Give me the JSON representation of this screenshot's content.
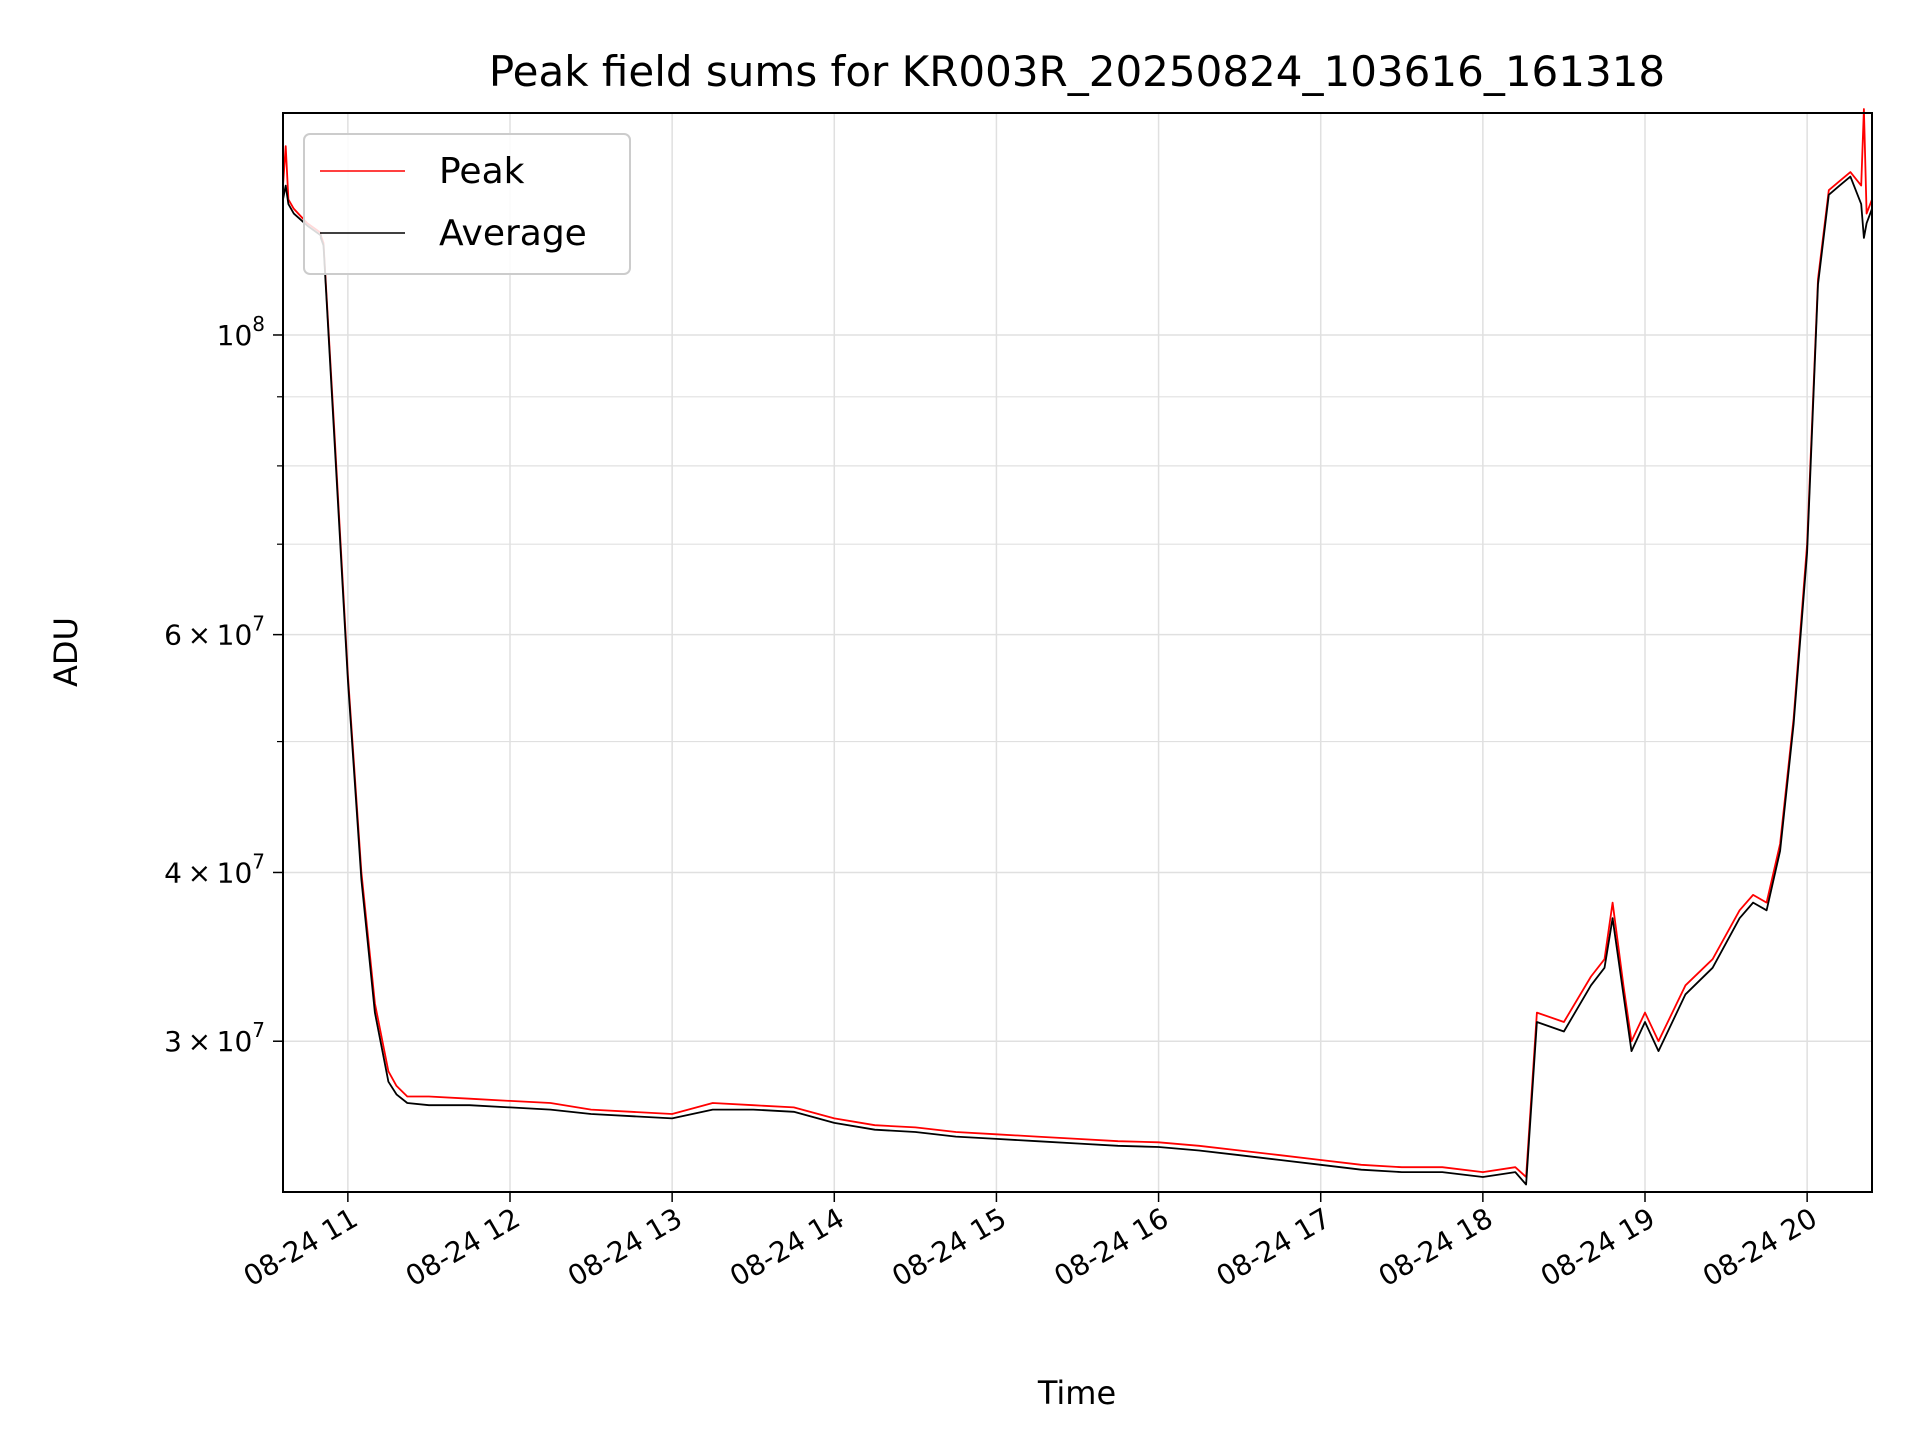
{
  "chart_data": {
    "type": "line",
    "title": "Peak field sums for KR003R_20250824_103616_161318",
    "xlabel": "Time",
    "ylabel": "ADU",
    "y_scale": "log",
    "ylim": [
      23200000,
      146000000
    ],
    "xlim": [
      "2025-08-24 10:36",
      "2025-08-24 20:24"
    ],
    "grid": true,
    "legend_position": "upper left",
    "x_tick_labels": [
      "08-24 11",
      "08-24 12",
      "08-24 13",
      "08-24 14",
      "08-24 15",
      "08-24 16",
      "08-24 17",
      "08-24 18",
      "08-24 19",
      "08-24 20"
    ],
    "x_ticks": [
      "2025-08-24 11:00",
      "2025-08-24 12:00",
      "2025-08-24 13:00",
      "2025-08-24 14:00",
      "2025-08-24 15:00",
      "2025-08-24 16:00",
      "2025-08-24 17:00",
      "2025-08-24 18:00",
      "2025-08-24 19:00",
      "2025-08-24 20:00"
    ],
    "y_major_ticks": [
      {
        "value": 30000000,
        "mantissa": "3",
        "exponent": "7"
      },
      {
        "value": 40000000,
        "mantissa": "4",
        "exponent": "7"
      },
      {
        "value": 60000000,
        "mantissa": "6",
        "exponent": "7"
      },
      {
        "value": 100000000,
        "mantissa": "",
        "exponent": "8"
      }
    ],
    "y_minor_ticks": [
      50000000,
      70000000,
      80000000,
      90000000
    ],
    "series": [
      {
        "name": "Peak",
        "color": "#ff0000",
        "x": [
          "2025-08-24 10:36",
          "2025-08-24 10:37",
          "2025-08-24 10:38",
          "2025-08-24 10:40",
          "2025-08-24 10:45",
          "2025-08-24 10:50",
          "2025-08-24 10:50",
          "2025-08-24 10:51",
          "2025-08-24 10:55",
          "2025-08-24 11:00",
          "2025-08-24 11:05",
          "2025-08-24 11:10",
          "2025-08-24 11:15",
          "2025-08-24 11:18",
          "2025-08-24 11:22",
          "2025-08-24 11:30",
          "2025-08-24 11:45",
          "2025-08-24 12:00",
          "2025-08-24 12:15",
          "2025-08-24 12:30",
          "2025-08-24 12:45",
          "2025-08-24 13:00",
          "2025-08-24 13:15",
          "2025-08-24 13:30",
          "2025-08-24 13:45",
          "2025-08-24 14:00",
          "2025-08-24 14:15",
          "2025-08-24 14:30",
          "2025-08-24 14:45",
          "2025-08-24 15:00",
          "2025-08-24 15:15",
          "2025-08-24 15:30",
          "2025-08-24 15:45",
          "2025-08-24 16:00",
          "2025-08-24 16:15",
          "2025-08-24 16:30",
          "2025-08-24 16:45",
          "2025-08-24 17:00",
          "2025-08-24 17:15",
          "2025-08-24 17:30",
          "2025-08-24 17:45",
          "2025-08-24 18:00",
          "2025-08-24 18:12",
          "2025-08-24 18:16",
          "2025-08-24 18:20",
          "2025-08-24 18:30",
          "2025-08-24 18:40",
          "2025-08-24 18:45",
          "2025-08-24 18:48",
          "2025-08-24 18:52",
          "2025-08-24 18:55",
          "2025-08-24 19:00",
          "2025-08-24 19:05",
          "2025-08-24 19:15",
          "2025-08-24 19:25",
          "2025-08-24 19:35",
          "2025-08-24 19:40",
          "2025-08-24 19:45",
          "2025-08-24 19:50",
          "2025-08-24 19:55",
          "2025-08-24 20:00",
          "2025-08-24 20:04",
          "2025-08-24 20:08",
          "2025-08-24 20:12",
          "2025-08-24 20:16",
          "2025-08-24 20:20",
          "2025-08-24 20:21",
          "2025-08-24 20:22",
          "2025-08-24 20:24"
        ],
        "y": [
          129000000,
          138000000,
          126000000,
          124000000,
          121000000,
          119000000,
          118500000,
          117000000,
          85000000,
          56000000,
          40000000,
          32000000,
          28500000,
          27800000,
          27300000,
          27300000,
          27200000,
          27100000,
          27000000,
          26700000,
          26600000,
          26500000,
          27000000,
          26900000,
          26800000,
          26300000,
          26000000,
          25900000,
          25700000,
          25600000,
          25500000,
          25400000,
          25300000,
          25250000,
          25100000,
          24900000,
          24700000,
          24500000,
          24300000,
          24200000,
          24200000,
          24000000,
          24200000,
          23800000,
          31500000,
          31000000,
          33500000,
          34500000,
          38000000,
          33000000,
          30000000,
          31500000,
          30000000,
          33000000,
          34500000,
          37500000,
          38500000,
          38000000,
          42000000,
          52000000,
          70000000,
          110000000,
          128000000,
          130000000,
          132000000,
          129000000,
          147000000,
          123000000,
          126000000
        ]
      },
      {
        "name": "Average",
        "color": "#000000",
        "x": [
          "2025-08-24 10:36",
          "2025-08-24 10:37",
          "2025-08-24 10:38",
          "2025-08-24 10:40",
          "2025-08-24 10:45",
          "2025-08-24 10:50",
          "2025-08-24 10:50",
          "2025-08-24 10:51",
          "2025-08-24 10:55",
          "2025-08-24 11:00",
          "2025-08-24 11:05",
          "2025-08-24 11:10",
          "2025-08-24 11:15",
          "2025-08-24 11:18",
          "2025-08-24 11:22",
          "2025-08-24 11:30",
          "2025-08-24 11:45",
          "2025-08-24 12:00",
          "2025-08-24 12:15",
          "2025-08-24 12:30",
          "2025-08-24 12:45",
          "2025-08-24 13:00",
          "2025-08-24 13:15",
          "2025-08-24 13:30",
          "2025-08-24 13:45",
          "2025-08-24 14:00",
          "2025-08-24 14:15",
          "2025-08-24 14:30",
          "2025-08-24 14:45",
          "2025-08-24 15:00",
          "2025-08-24 15:15",
          "2025-08-24 15:30",
          "2025-08-24 15:45",
          "2025-08-24 16:00",
          "2025-08-24 16:15",
          "2025-08-24 16:30",
          "2025-08-24 16:45",
          "2025-08-24 17:00",
          "2025-08-24 17:15",
          "2025-08-24 17:30",
          "2025-08-24 17:45",
          "2025-08-24 18:00",
          "2025-08-24 18:12",
          "2025-08-24 18:16",
          "2025-08-24 18:20",
          "2025-08-24 18:30",
          "2025-08-24 18:40",
          "2025-08-24 18:45",
          "2025-08-24 18:48",
          "2025-08-24 18:52",
          "2025-08-24 18:55",
          "2025-08-24 19:00",
          "2025-08-24 19:05",
          "2025-08-24 19:15",
          "2025-08-24 19:25",
          "2025-08-24 19:35",
          "2025-08-24 19:40",
          "2025-08-24 19:45",
          "2025-08-24 19:50",
          "2025-08-24 19:55",
          "2025-08-24 20:00",
          "2025-08-24 20:04",
          "2025-08-24 20:08",
          "2025-08-24 20:12",
          "2025-08-24 20:16",
          "2025-08-24 20:20",
          "2025-08-24 20:21",
          "2025-08-24 20:22",
          "2025-08-24 20:24"
        ],
        "y": [
          126000000,
          129000000,
          125000000,
          123000000,
          120500000,
          118500000,
          118000000,
          116500000,
          84000000,
          55500000,
          39500000,
          31500000,
          28000000,
          27400000,
          27000000,
          26900000,
          26900000,
          26800000,
          26700000,
          26500000,
          26400000,
          26300000,
          26700000,
          26700000,
          26600000,
          26100000,
          25800000,
          25700000,
          25500000,
          25400000,
          25300000,
          25200000,
          25100000,
          25050000,
          24900000,
          24700000,
          24500000,
          24300000,
          24100000,
          24000000,
          24000000,
          23800000,
          24000000,
          23500000,
          31000000,
          30500000,
          33000000,
          34000000,
          37000000,
          32500000,
          29500000,
          31000000,
          29500000,
          32500000,
          34000000,
          37000000,
          38000000,
          37500000,
          41500000,
          51500000,
          69000000,
          109000000,
          127000000,
          129000000,
          131000000,
          125000000,
          118000000,
          121000000,
          124000000
        ]
      }
    ]
  }
}
